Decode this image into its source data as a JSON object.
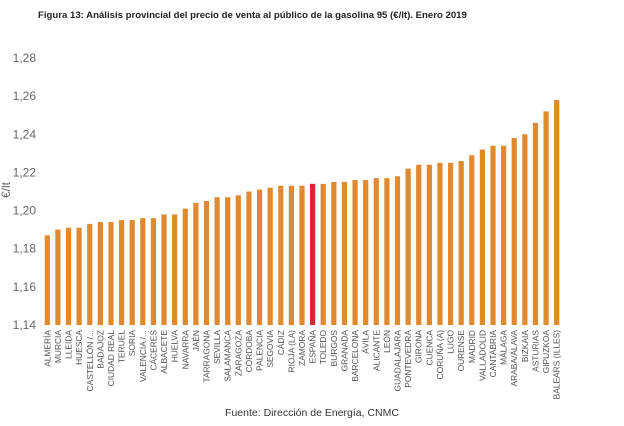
{
  "title": "Figura 13: Análisis provincial del precio de venta al público de la gasolina 95 (€/lt). Enero 2019",
  "source": "Fuente: Dirección de Energía, CNMC",
  "chart_data": {
    "type": "bar",
    "ylabel": "€/lt",
    "ylim": [
      1.14,
      1.28
    ],
    "yticks": [
      "1,14",
      "1,16",
      "1,18",
      "1,20",
      "1,22",
      "1,24",
      "1,26",
      "1,28"
    ],
    "grid": false,
    "colors": {
      "default": "#e0892e",
      "highlight": "#d42a34"
    },
    "highlight": "ESPAÑA",
    "categories": [
      "ALMERÍA",
      "MURCIA",
      "LLEIDA",
      "HUESCA",
      "CASTELLÓN /...",
      "BADAJOZ",
      "CIUDAD REAL",
      "TERUEL",
      "SORIA",
      "VALENCIA /...",
      "CÁCERES",
      "ALBACETE",
      "HUELVA",
      "NAVARRA",
      "JAÉN",
      "TARRAGONA",
      "SEVILLA",
      "SALAMANCA",
      "ZARAGOZA",
      "CÓRDOBA",
      "PALENCIA",
      "SEGOVIA",
      "CÁDIZ",
      "RIOJA (LA)",
      "ZAMORA",
      "ESPAÑA",
      "TOLEDO",
      "BURGOS",
      "GRANADA",
      "BARCELONA",
      "ÁVILA",
      "ALICANTE",
      "LEÓN",
      "GUADALAJARA",
      "PONTEVEDRA",
      "GIRONA",
      "CUENCA",
      "CORUÑA (A)",
      "LUGO",
      "OURENSE",
      "MADRID",
      "VALLADOLID",
      "CANTABRIA",
      "MÁLAGA",
      "ARABA/ÁLAVA",
      "BIZKAIA",
      "ASTURIAS",
      "GIPUZKOA",
      "BALEARS (ILLES)"
    ],
    "values": [
      1.187,
      1.19,
      1.191,
      1.191,
      1.193,
      1.194,
      1.194,
      1.195,
      1.195,
      1.196,
      1.196,
      1.198,
      1.198,
      1.201,
      1.204,
      1.205,
      1.207,
      1.207,
      1.208,
      1.21,
      1.211,
      1.212,
      1.213,
      1.213,
      1.213,
      1.214,
      1.214,
      1.215,
      1.215,
      1.216,
      1.216,
      1.217,
      1.217,
      1.218,
      1.222,
      1.224,
      1.224,
      1.225,
      1.225,
      1.226,
      1.229,
      1.232,
      1.234,
      1.234,
      1.238,
      1.24,
      1.246,
      1.252,
      1.258
    ]
  }
}
